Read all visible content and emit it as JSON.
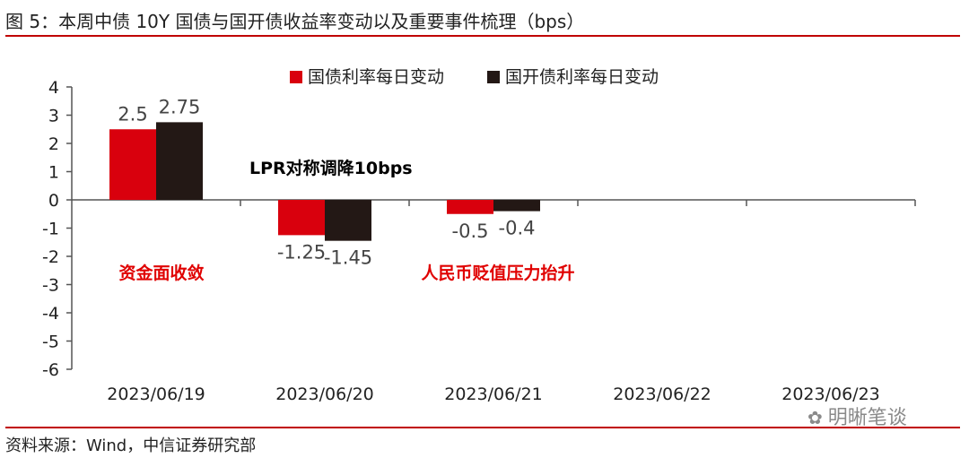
{
  "header": {
    "title": "图 5：本周中债 10Y 国债与国开债收益率变动以及重要事件梳理（bps）"
  },
  "footer": {
    "source": "资料来源：Wind，中信证券研究部",
    "watermark": "明晰笔谈"
  },
  "chart_data": {
    "type": "bar",
    "categories": [
      "2023/06/19",
      "2023/06/20",
      "2023/06/21",
      "2023/06/22",
      "2023/06/23"
    ],
    "series": [
      {
        "name": "国债利率每日变动",
        "color": "#d9000d",
        "values": [
          2.5,
          -1.25,
          -0.5,
          null,
          null
        ],
        "labels": [
          "2.5",
          "-1.25",
          "-0.5",
          "",
          ""
        ]
      },
      {
        "name": "国开债利率每日变动",
        "color": "#231815",
        "values": [
          2.75,
          -1.45,
          -0.4,
          null,
          null
        ],
        "labels": [
          "2.75",
          "-1.45",
          "-0.4",
          "",
          ""
        ]
      }
    ],
    "ylim": [
      -6,
      4
    ],
    "yticks": [
      4,
      3,
      2,
      1,
      0,
      -1,
      -2,
      -3,
      -4,
      -5,
      -6
    ],
    "legend_position": "top-right",
    "grid": false,
    "annotations": [
      {
        "text": "LPR对称调降10bps",
        "color": "#000000"
      },
      {
        "text": "资金面收敛",
        "color": "#e00000"
      },
      {
        "text": "人民币贬值压力抬升",
        "color": "#e00000"
      }
    ]
  }
}
